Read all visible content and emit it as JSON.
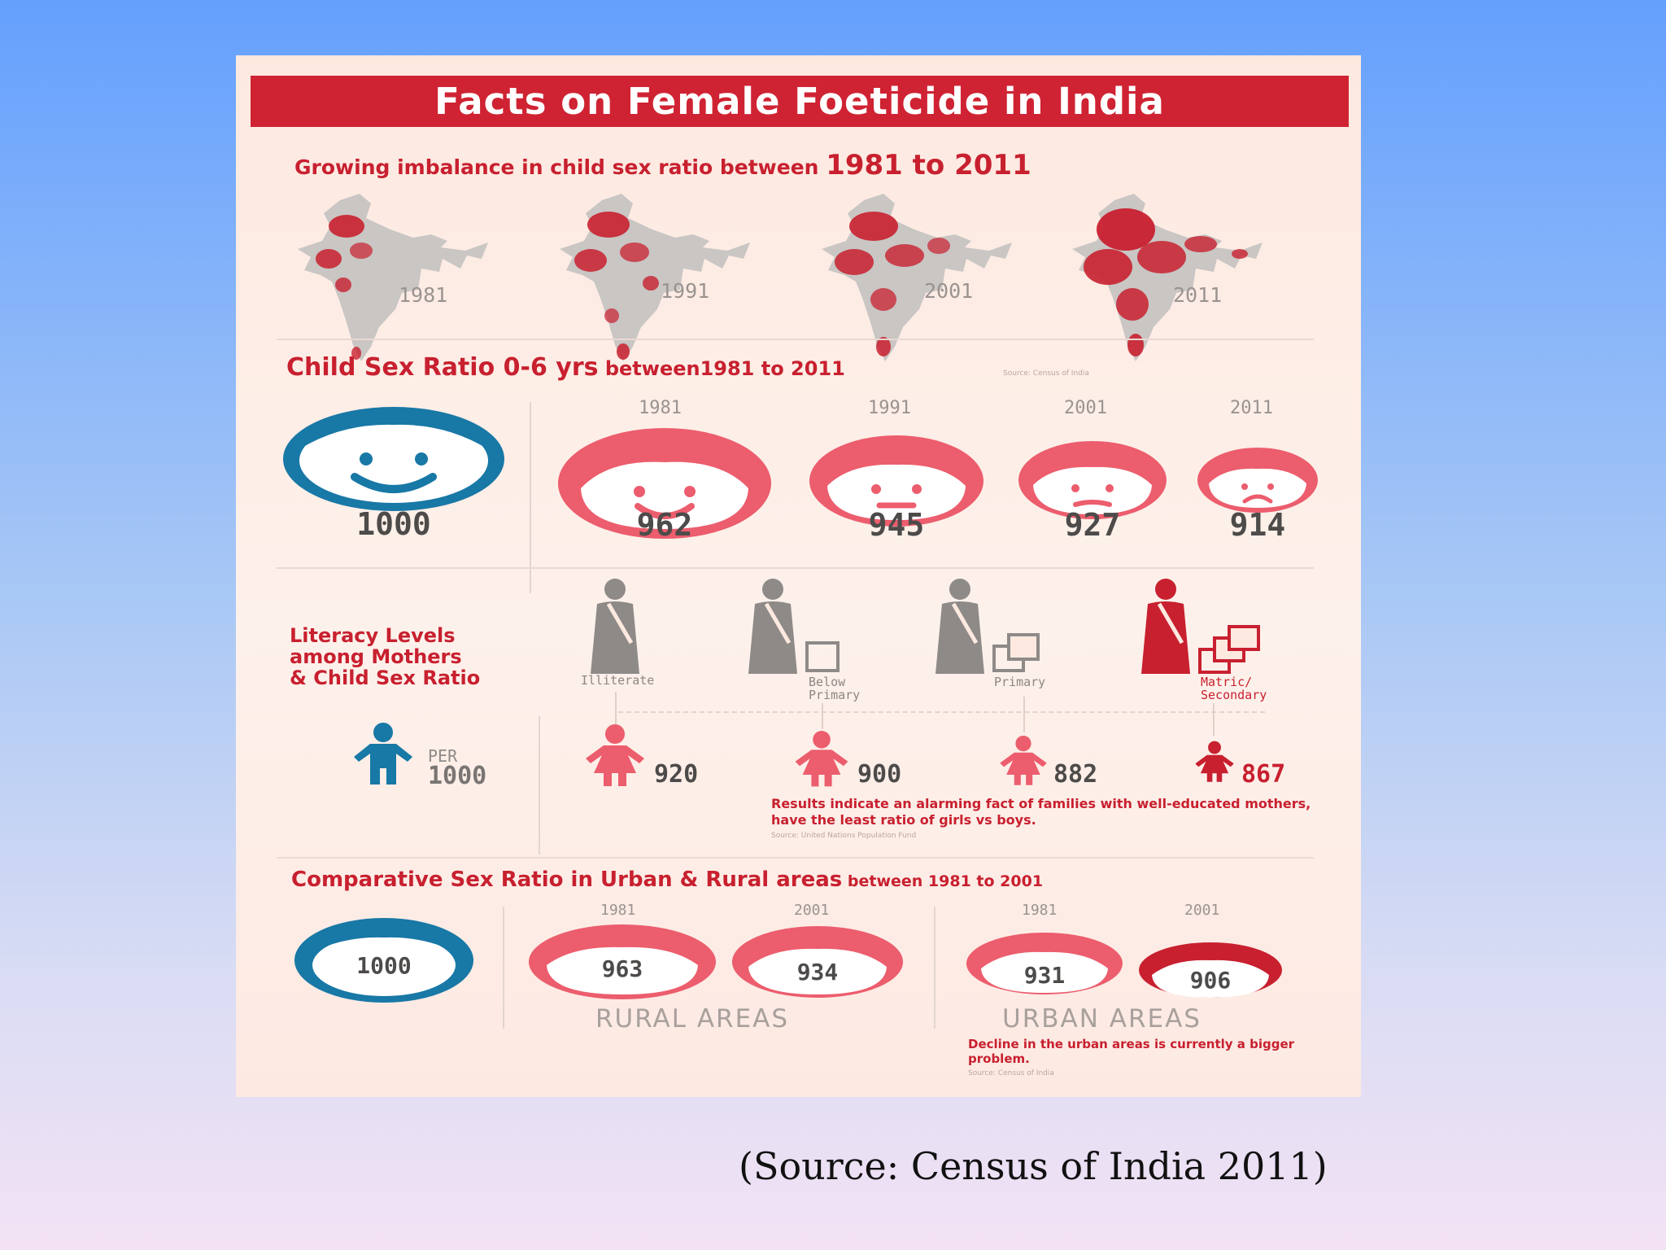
{
  "title": "Facts on Female Foeticide in India",
  "section1": {
    "heading_prefix": "Growing imbalance in child sex ratio between ",
    "heading_range": "1981 to 2011",
    "maps": [
      {
        "year": "1981"
      },
      {
        "year": "1991"
      },
      {
        "year": "2001"
      },
      {
        "year": "2011"
      }
    ]
  },
  "section2": {
    "heading_prefix": "Child Sex Ratio 0-6 yrs",
    "heading_suffix": " between1981 to 2011",
    "source": "Source: Census of India",
    "baseline": "1000",
    "faces": [
      {
        "year": "1981",
        "value": "962",
        "mood": "happy"
      },
      {
        "year": "1991",
        "value": "945",
        "mood": "neutral"
      },
      {
        "year": "2001",
        "value": "927",
        "mood": "worried"
      },
      {
        "year": "2011",
        "value": "914",
        "mood": "sad"
      }
    ]
  },
  "section3": {
    "heading_lines": [
      "Literacy Levels",
      "among Mothers",
      "& Child Sex Ratio"
    ],
    "per_label": "PER",
    "per_value": "1000",
    "levels": [
      {
        "label": "Illiterate",
        "value": "920"
      },
      {
        "label": "Below\nPrimary",
        "value": "900"
      },
      {
        "label": "Primary",
        "value": "882"
      },
      {
        "label": "Matric/\nSecondary",
        "value": "867"
      }
    ],
    "note": "Results indicate an alarming fact of families with well-educated mothers, have the least ratio of girls vs boys.",
    "source": "Source: United Nations Population Fund"
  },
  "section4": {
    "heading_prefix": "Comparative Sex Ratio in Urban & Rural areas",
    "heading_suffix": " between 1981 to 2001",
    "baseline": "1000",
    "rural": {
      "label": "RURAL AREAS",
      "items": [
        {
          "year": "1981",
          "value": "963"
        },
        {
          "year": "2001",
          "value": "934"
        }
      ]
    },
    "urban": {
      "label": "URBAN AREAS",
      "items": [
        {
          "year": "1981",
          "value": "931"
        },
        {
          "year": "2001",
          "value": "906"
        }
      ]
    },
    "note": "Decline in the urban areas is currently a bigger problem.",
    "source": "Source: Census of India"
  },
  "caption": "(Source: Census of India 2011)",
  "colors": {
    "red": "#c8202f",
    "pink": "#ec5d6d",
    "blue": "#1878a6",
    "gray": "#8e8a88"
  }
}
